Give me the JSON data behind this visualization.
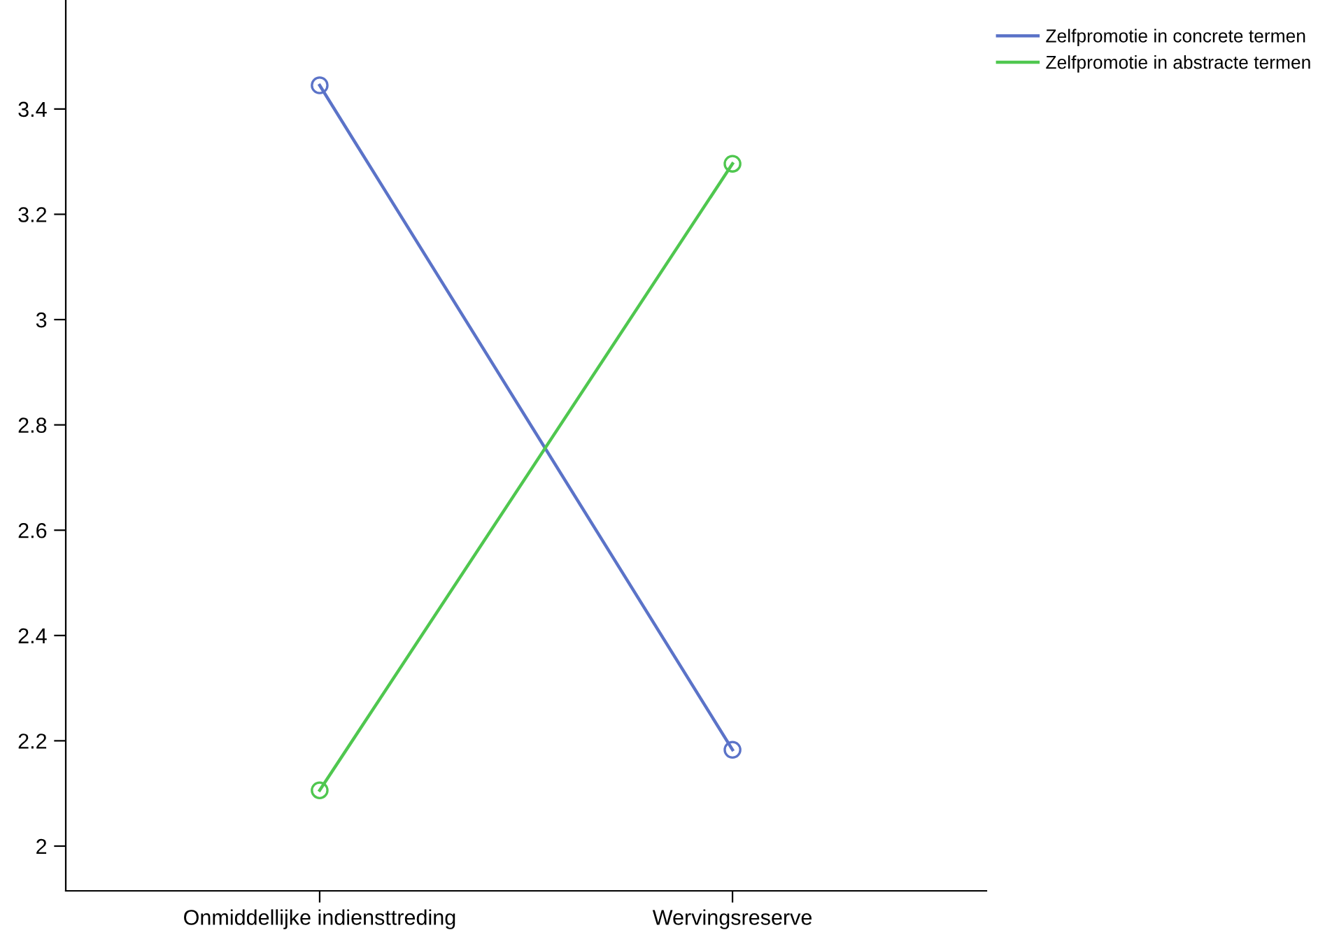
{
  "chart_data": {
    "type": "line",
    "categories": [
      "Onmiddellijke indiensttreding",
      "Wervingsreserve"
    ],
    "series": [
      {
        "name": "Zelfpromotie in concrete termen",
        "color": "#5b73c8",
        "values": [
          3.445,
          2.183
        ]
      },
      {
        "name": "Zelfpromotie in abstracte termen",
        "color": "#4fc74f",
        "values": [
          2.106,
          3.296
        ]
      }
    ],
    "ylim": [
      1.915,
      3.607
    ],
    "yticks": [
      2,
      2.2,
      2.4,
      2.6,
      2.8,
      3,
      3.2,
      3.4
    ],
    "marker": "circle",
    "line_style": "solid",
    "grid": false,
    "legend": "top right"
  }
}
